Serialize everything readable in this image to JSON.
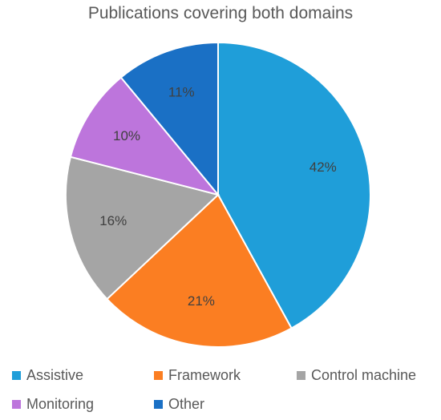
{
  "chart_data": {
    "type": "pie",
    "title": "Publications covering both domains",
    "categories": [
      "Assistive",
      "Framework",
      "Control machine",
      "Monitoring",
      "Other"
    ],
    "values": [
      42,
      21,
      16,
      10,
      11
    ],
    "labels": [
      "42%",
      "21%",
      "16%",
      "10%",
      "11%"
    ],
    "colors": [
      "#1f9ed9",
      "#fb7e22",
      "#a5a5a5",
      "#bd75dc",
      "#1a70c5"
    ],
    "legend_position": "bottom"
  }
}
